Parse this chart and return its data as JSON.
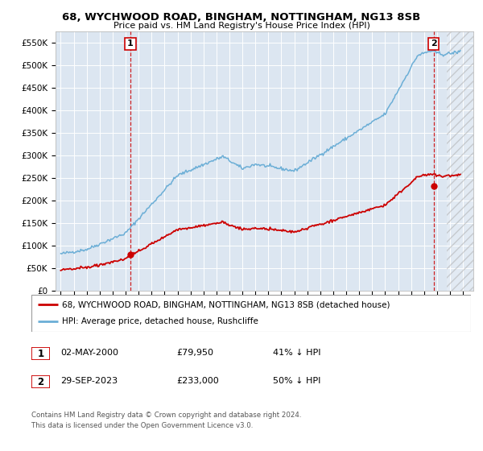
{
  "title": "68, WYCHWOOD ROAD, BINGHAM, NOTTINGHAM, NG13 8SB",
  "subtitle": "Price paid vs. HM Land Registry's House Price Index (HPI)",
  "legend_line1": "68, WYCHWOOD ROAD, BINGHAM, NOTTINGHAM, NG13 8SB (detached house)",
  "legend_line2": "HPI: Average price, detached house, Rushcliffe",
  "footnote1": "Contains HM Land Registry data © Crown copyright and database right 2024.",
  "footnote2": "This data is licensed under the Open Government Licence v3.0.",
  "ann1_label": "1",
  "ann1_date": "02-MAY-2000",
  "ann1_price": "£79,950",
  "ann1_hpi": "41% ↓ HPI",
  "ann2_label": "2",
  "ann2_date": "29-SEP-2023",
  "ann2_price": "£233,000",
  "ann2_hpi": "50% ↓ HPI",
  "hpi_color": "#6baed6",
  "price_color": "#cc0000",
  "ann_color": "#cc0000",
  "bg_plot": "#dce6f1",
  "bg_fig": "#ffffff",
  "grid_color": "#ffffff",
  "border_color": "#aaaaaa",
  "ylim": [
    0,
    575000
  ],
  "xlim_start": 1994.6,
  "xlim_end": 2026.8,
  "marker1_x": 2000.37,
  "marker1_y": 79950,
  "marker2_x": 2023.75,
  "marker2_y": 233000,
  "hatch_start": 2024.75
}
